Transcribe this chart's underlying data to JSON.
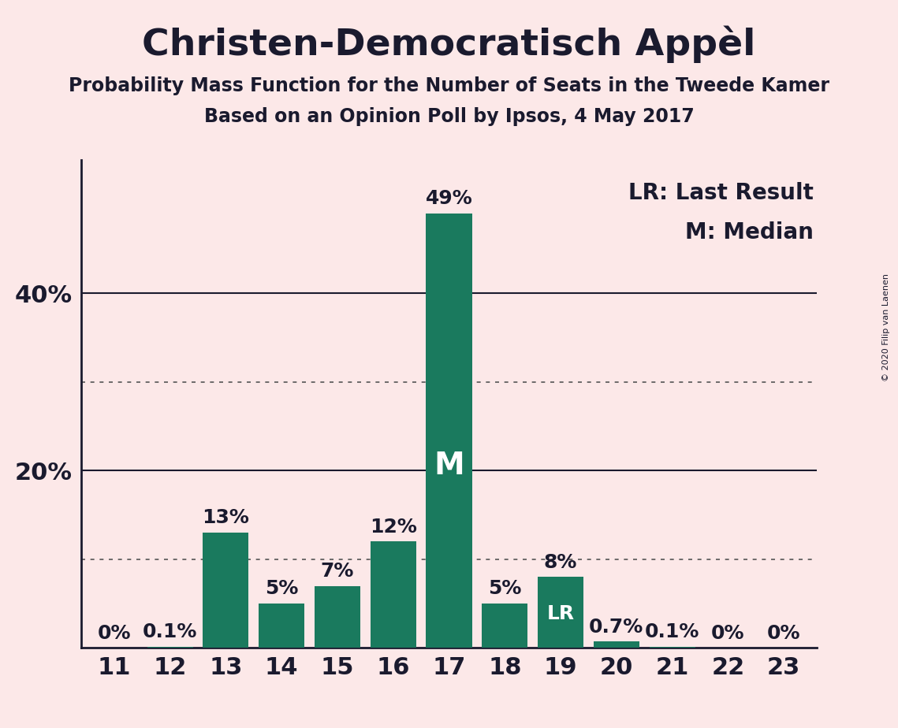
{
  "title": "Christen-Democratisch Appèl",
  "subtitle1": "Probability Mass Function for the Number of Seats in the Tweede Kamer",
  "subtitle2": "Based on an Opinion Poll by Ipsos, 4 May 2017",
  "copyright": "© 2020 Filip van Laenen",
  "categories": [
    11,
    12,
    13,
    14,
    15,
    16,
    17,
    18,
    19,
    20,
    21,
    22,
    23
  ],
  "values": [
    0.0,
    0.1,
    13.0,
    5.0,
    7.0,
    12.0,
    49.0,
    5.0,
    8.0,
    0.7,
    0.1,
    0.0,
    0.0
  ],
  "labels": [
    "0%",
    "0.1%",
    "13%",
    "5%",
    "7%",
    "12%",
    "49%",
    "5%",
    "8%",
    "0.7%",
    "0.1%",
    "0%",
    "0%"
  ],
  "bar_color": "#1a7a5e",
  "background_color": "#fce8e8",
  "text_color": "#1a1a2e",
  "median_bar": 17,
  "lr_bar": 19,
  "legend_lr": "LR: Last Result",
  "legend_m": "M: Median",
  "ylim": [
    0,
    55
  ],
  "solid_gridlines": [
    20,
    40
  ],
  "dotted_gridlines": [
    10,
    30
  ],
  "title_fontsize": 34,
  "subtitle_fontsize": 17,
  "axis_label_fontsize": 22,
  "bar_label_fontsize": 18,
  "legend_fontsize": 20,
  "m_label_fontsize": 28,
  "lr_label_fontsize": 18
}
